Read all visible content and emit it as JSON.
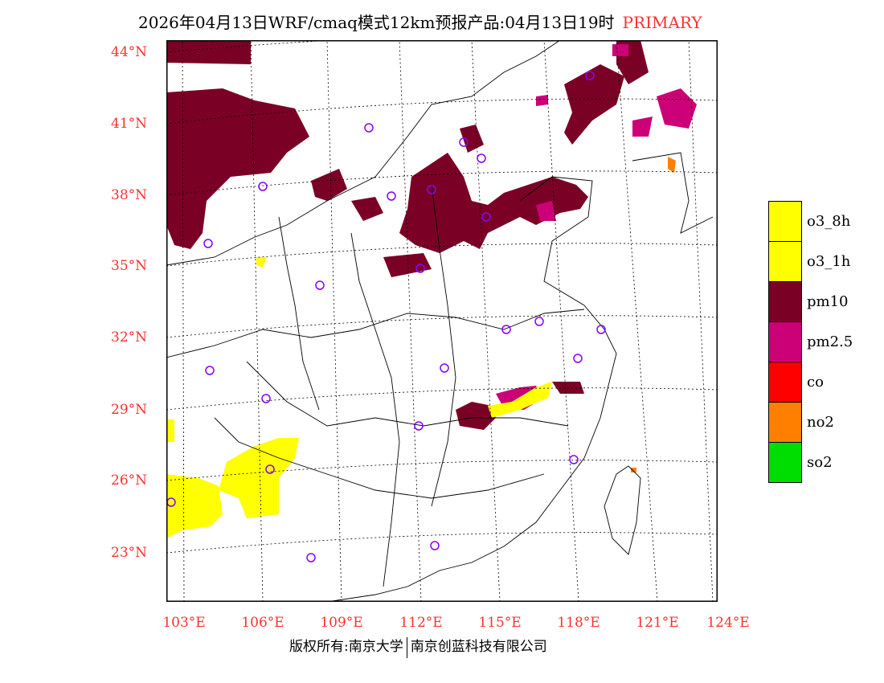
{
  "title": {
    "main": "2026年04月13日WRF/cmaq模式12km预报产品:04月13日19时",
    "product": "PRIMARY"
  },
  "lat_labels": [
    "44°N",
    "41°N",
    "38°N",
    "35°N",
    "32°N",
    "29°N",
    "26°N",
    "23°N"
  ],
  "lon_labels": [
    "103°E",
    "106°E",
    "109°E",
    "112°E",
    "115°E",
    "118°E",
    "121°E",
    "124°E"
  ],
  "legend": [
    {
      "label": "o3_8h",
      "color": "#ffff00"
    },
    {
      "label": "o3_1h",
      "color": "#ffff00"
    },
    {
      "label": "pm10",
      "color": "#7a0026"
    },
    {
      "label": "pm2.5",
      "color": "#cc0077"
    },
    {
      "label": "co",
      "color": "#ff0000"
    },
    {
      "label": "no2",
      "color": "#ff7f00"
    },
    {
      "label": "so2",
      "color": "#00dd00"
    }
  ],
  "footer": {
    "left": "版权所有:南京大学",
    "right": "南京创蓝科技有限公司"
  }
}
